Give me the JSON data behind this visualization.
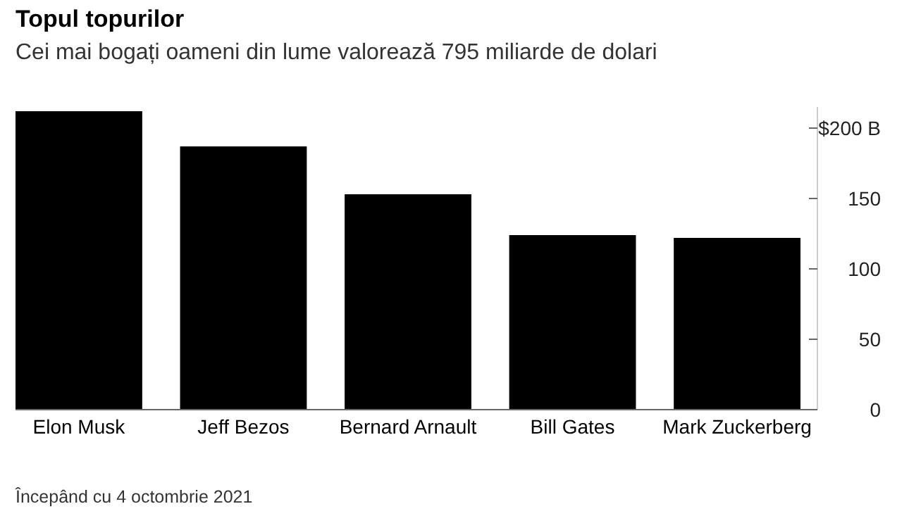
{
  "chart_data": {
    "type": "bar",
    "title": "Topul topurilor",
    "subtitle": "Cei mai bogați oameni din lume valorează 795 miliarde de dolari",
    "categories": [
      "Elon Musk",
      "Jeff Bezos",
      "Bernard Arnault",
      "Bill Gates",
      "Mark Zuckerberg"
    ],
    "values": [
      212,
      187,
      153,
      124,
      122
    ],
    "color": "#000000",
    "ylim": [
      0,
      215
    ],
    "yticks": [
      0,
      50,
      100,
      150,
      {
        "value": 200,
        "label": "$200 B"
      }
    ],
    "grid": false,
    "annotations": [
      "Începând cu 4 octombrie 2021"
    ]
  }
}
